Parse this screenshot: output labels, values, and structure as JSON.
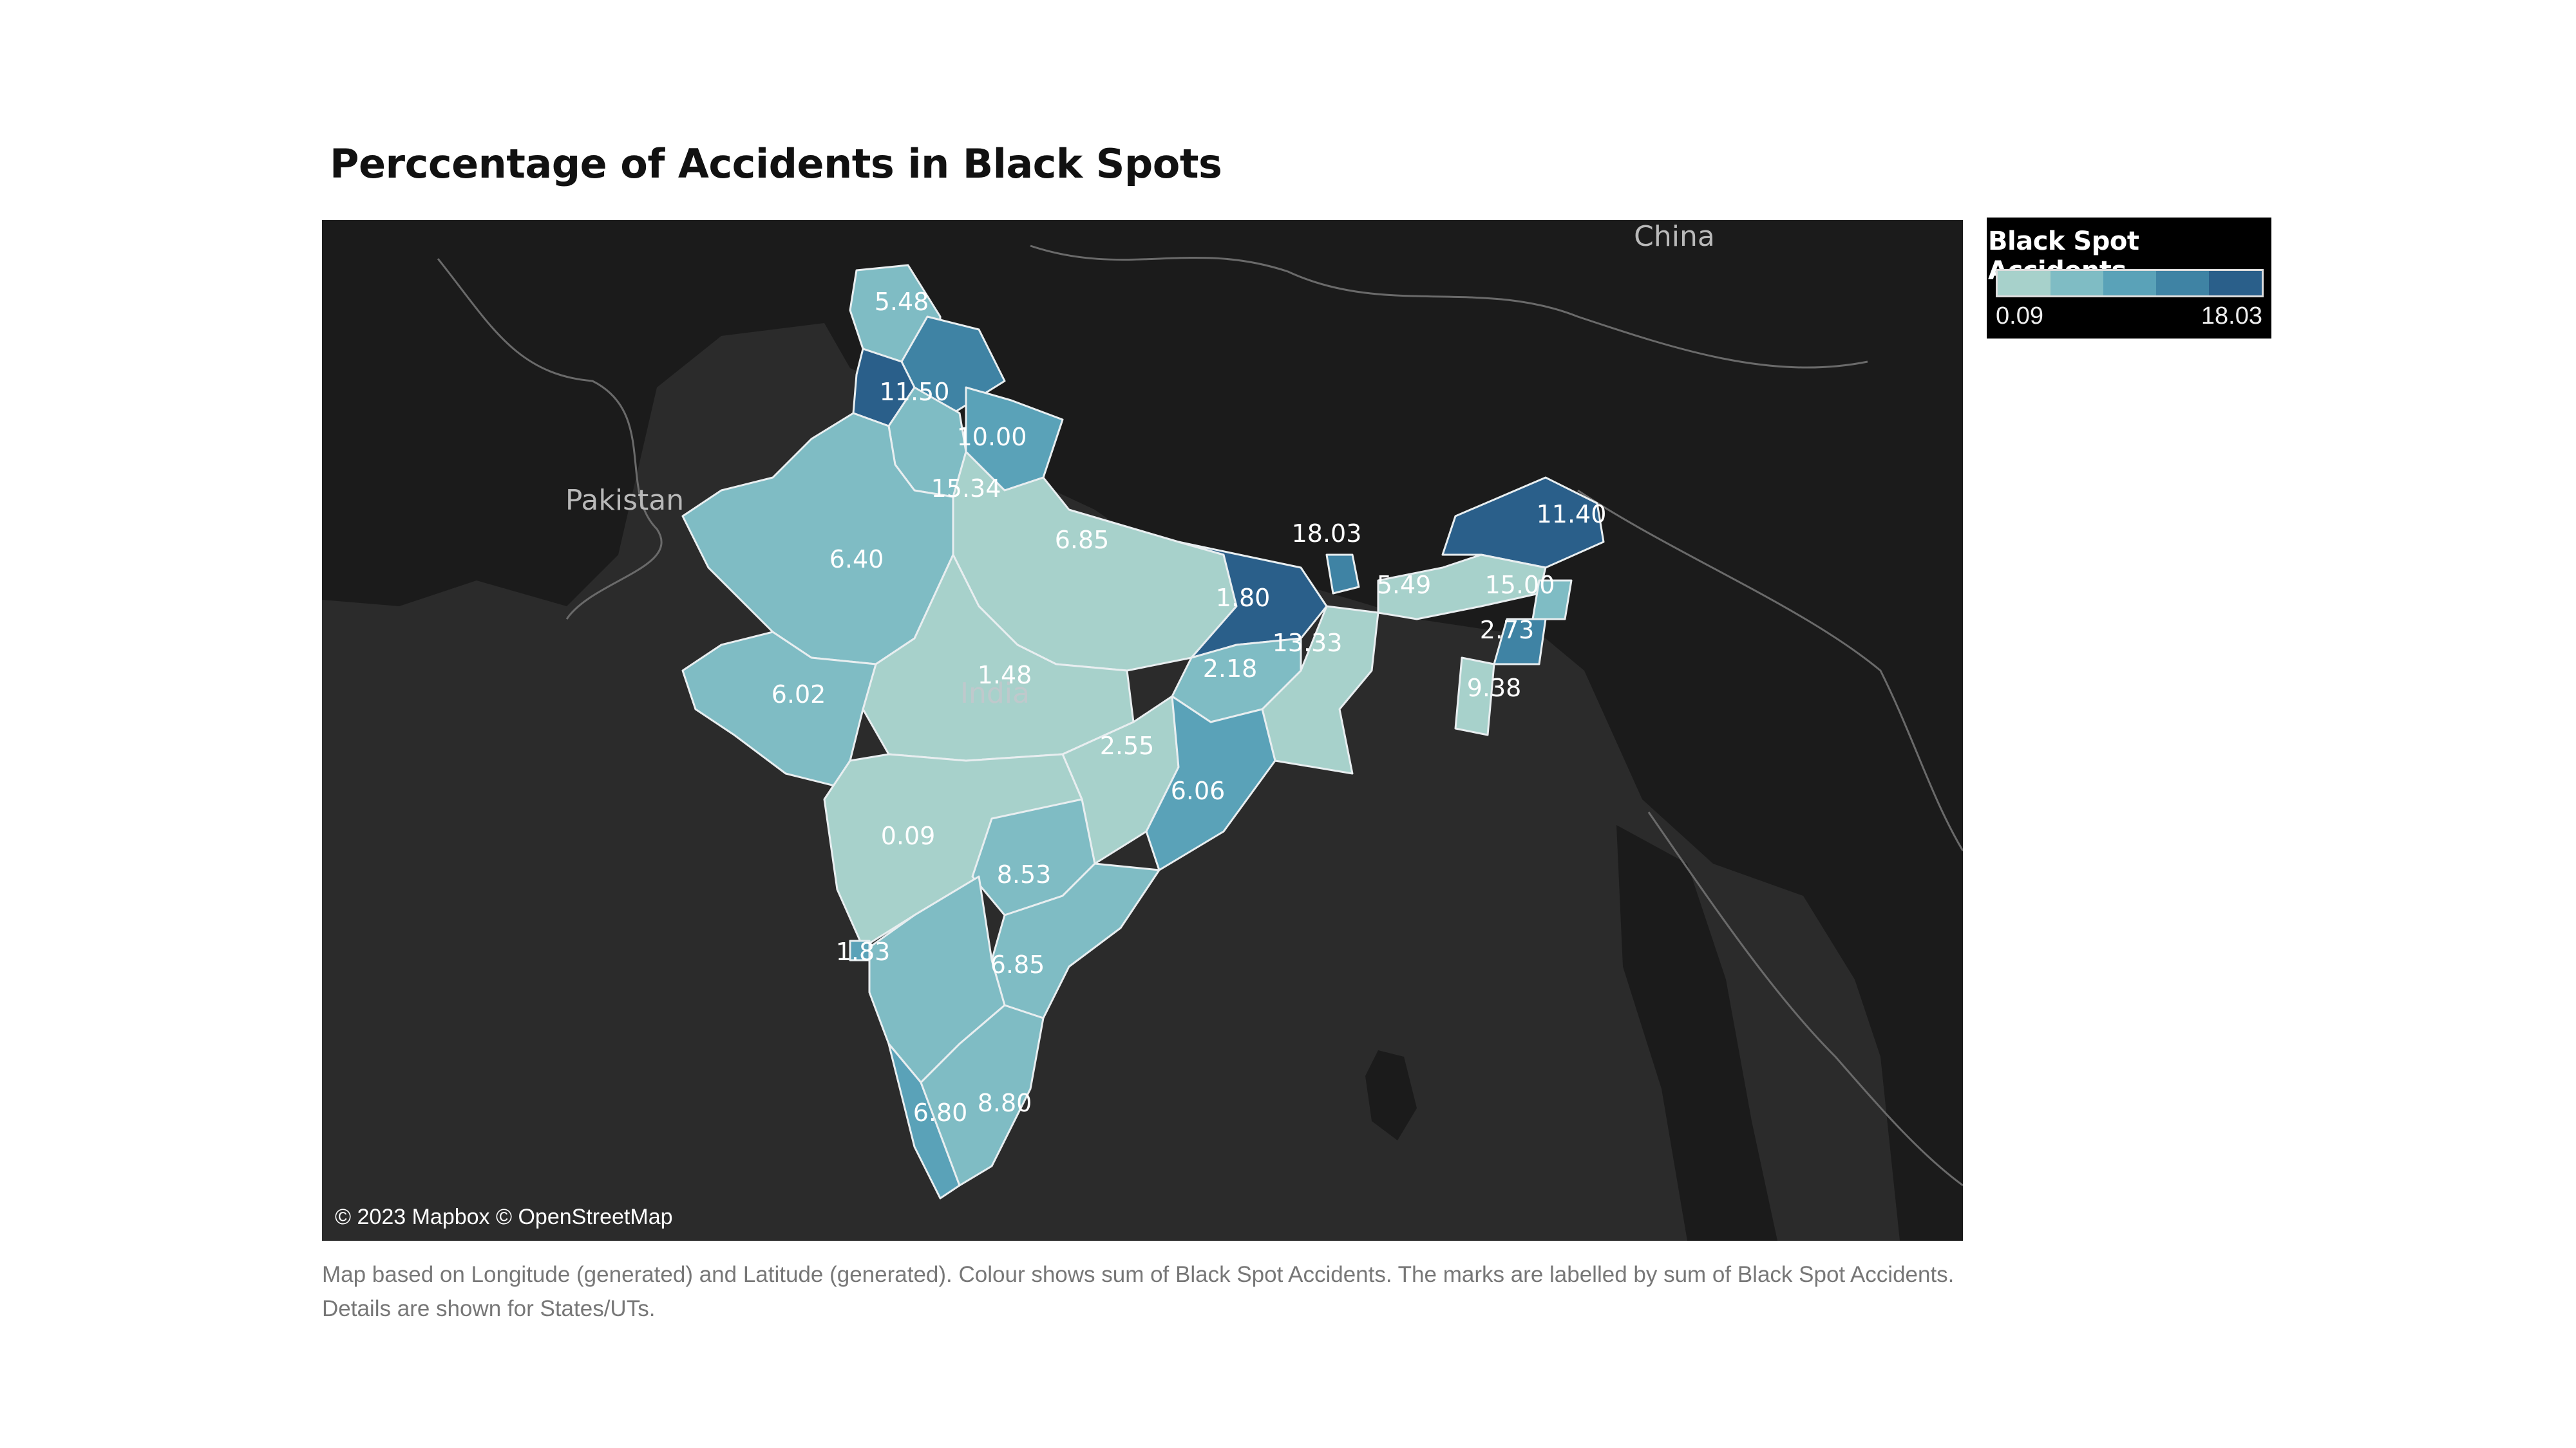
{
  "title": "Perccentage of Accidents in Black Spots",
  "legend": {
    "title": "Black Spot Accidents",
    "min_label": "0.09",
    "max_label": "18.03",
    "colors": [
      "#a7d1cb",
      "#7fbcc4",
      "#5aa2b8",
      "#3f83a4",
      "#2a5f8a"
    ]
  },
  "map": {
    "background_land": "#1b1b1b",
    "background_water": "#2b2b2b",
    "country_labels": [
      "China",
      "Pakistan",
      "India"
    ],
    "attribution": "© 2023 Mapbox © OpenStreetMap"
  },
  "chart_data": {
    "type": "choropleth",
    "title": "Perccentage of Accidents in Black Spots",
    "measure": "Black Spot Accidents",
    "color_range": [
      0.09,
      18.03
    ],
    "values": [
      {
        "label": "5.48",
        "value": 5.48
      },
      {
        "label": "11.50",
        "value": 11.5
      },
      {
        "label": "10.00",
        "value": 10.0
      },
      {
        "label": "15.34",
        "value": 15.34
      },
      {
        "label": "6.40",
        "value": 6.4
      },
      {
        "label": "6.85",
        "value": 6.85
      },
      {
        "label": "1.80",
        "value": 1.8
      },
      {
        "label": "18.03",
        "value": 18.03
      },
      {
        "label": "11.40",
        "value": 11.4
      },
      {
        "label": "5.49",
        "value": 5.49
      },
      {
        "label": "15.00",
        "value": 15.0
      },
      {
        "label": "2.73",
        "value": 2.73
      },
      {
        "label": "13.33",
        "value": 13.33
      },
      {
        "label": "9.38",
        "value": 9.38
      },
      {
        "label": "2.18",
        "value": 2.18
      },
      {
        "label": "1.48",
        "value": 1.48
      },
      {
        "label": "6.02",
        "value": 6.02
      },
      {
        "label": "2.55",
        "value": 2.55
      },
      {
        "label": "6.06",
        "value": 6.06
      },
      {
        "label": "0.09",
        "value": 0.09
      },
      {
        "label": "8.53",
        "value": 8.53
      },
      {
        "label": "1.83",
        "value": 1.83
      },
      {
        "label": "6.85",
        "value": 6.85
      },
      {
        "label": "6.80",
        "value": 6.8
      },
      {
        "label": "8.80",
        "value": 8.8
      }
    ]
  },
  "caption": "Map based on Longitude (generated) and Latitude (generated).  Colour shows sum of Black Spot Accidents.  The marks are labelled by sum of Black Spot Accidents.  Details are shown for States/UTs."
}
